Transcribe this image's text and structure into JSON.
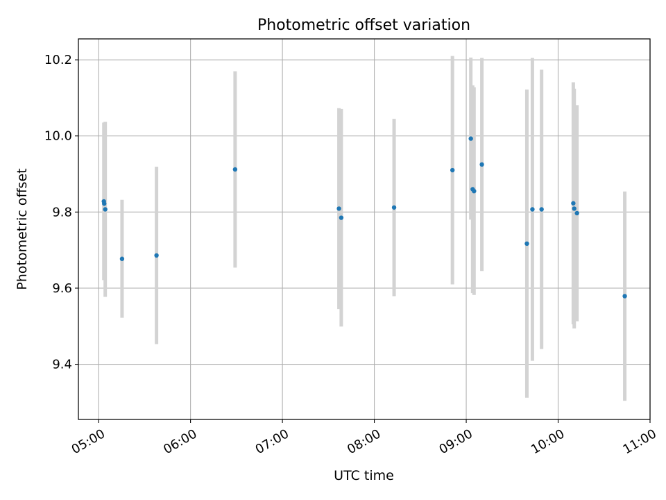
{
  "chart_data": {
    "type": "scatter",
    "title": "Photometric offset variation",
    "xlabel": "UTC time",
    "ylabel": "Photometric offset",
    "x_unit": "hours",
    "xlim": [
      4.78,
      11.0
    ],
    "ylim": [
      9.255,
      10.255
    ],
    "grid": true,
    "x_ticks": [
      {
        "value": 5,
        "label": "05:00"
      },
      {
        "value": 6,
        "label": "06:00"
      },
      {
        "value": 7,
        "label": "07:00"
      },
      {
        "value": 8,
        "label": "08:00"
      },
      {
        "value": 9,
        "label": "09:00"
      },
      {
        "value": 10,
        "label": "10:00"
      },
      {
        "value": 11,
        "label": "11:00"
      }
    ],
    "y_ticks": [
      {
        "value": 9.4,
        "label": "9.4"
      },
      {
        "value": 9.6,
        "label": "9.6"
      },
      {
        "value": 9.8,
        "label": "9.8"
      },
      {
        "value": 10.0,
        "label": "10.0"
      },
      {
        "value": 10.2,
        "label": "10.2"
      }
    ],
    "series": [
      {
        "name": "offset",
        "color": "#1f77b4",
        "errorbar_color": "#d3d3d3",
        "points": [
          {
            "x": 5.057,
            "y": 9.828,
            "err": 0.207
          },
          {
            "x": 5.061,
            "y": 9.822,
            "err": 0.197
          },
          {
            "x": 5.072,
            "y": 9.807,
            "err": 0.23
          },
          {
            "x": 5.255,
            "y": 9.677,
            "err": 0.155
          },
          {
            "x": 5.63,
            "y": 9.686,
            "err": 0.233
          },
          {
            "x": 6.485,
            "y": 9.912,
            "err": 0.258
          },
          {
            "x": 7.615,
            "y": 9.809,
            "err": 0.264
          },
          {
            "x": 7.64,
            "y": 9.785,
            "err": 0.286
          },
          {
            "x": 8.215,
            "y": 9.812,
            "err": 0.233
          },
          {
            "x": 8.85,
            "y": 9.91,
            "err": 0.3
          },
          {
            "x": 9.05,
            "y": 9.993,
            "err": 0.213
          },
          {
            "x": 9.07,
            "y": 9.86,
            "err": 0.273
          },
          {
            "x": 9.085,
            "y": 9.855,
            "err": 0.273
          },
          {
            "x": 9.17,
            "y": 9.925,
            "err": 0.28
          },
          {
            "x": 9.66,
            "y": 9.717,
            "err": 0.405
          },
          {
            "x": 9.72,
            "y": 9.807,
            "err": 0.398
          },
          {
            "x": 9.82,
            "y": 9.807,
            "err": 0.367
          },
          {
            "x": 10.165,
            "y": 9.823,
            "err": 0.318
          },
          {
            "x": 10.175,
            "y": 9.809,
            "err": 0.315
          },
          {
            "x": 10.205,
            "y": 9.797,
            "err": 0.284
          },
          {
            "x": 10.725,
            "y": 9.579,
            "err": 0.275
          }
        ]
      }
    ]
  }
}
